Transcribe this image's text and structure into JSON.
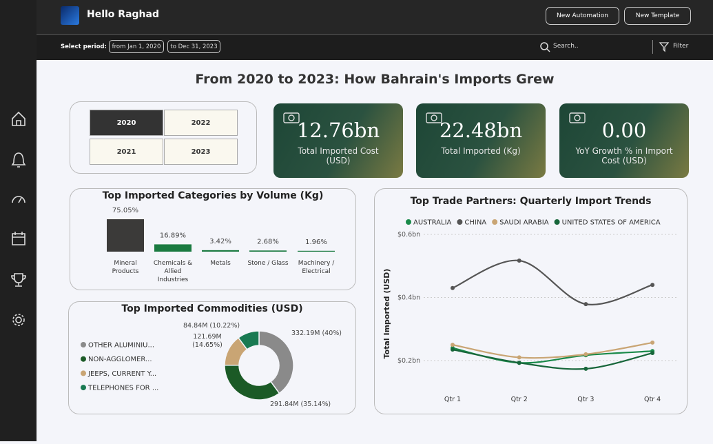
{
  "header": {
    "greeting": "Hello Raghad",
    "buttons": [
      "New Automation",
      "New Template"
    ]
  },
  "filters": {
    "label": "Select period:",
    "from": "from Jan 1, 2020",
    "to": "to Dec 31, 2023",
    "search": "Search..",
    "filter": "Filter"
  },
  "title": "From 2020 to 2023: How Bahrain's Imports Grew",
  "years": [
    "2020",
    "2022",
    "2021",
    "2023"
  ],
  "kpis": [
    {
      "value": "12.76bn",
      "label": "Total Imported Cost (USD)"
    },
    {
      "value": "22.48bn",
      "label": "Total Imported (Kg)"
    },
    {
      "value": "0.00",
      "label": "YoY Growth % in Import Cost (USD)"
    }
  ],
  "chart_data": [
    {
      "type": "bar",
      "title": "Top Imported Categories by Volume (Kg)",
      "categories": [
        "Mineral Products",
        "Chemicals & Allied Industries",
        "Metals",
        "Stone / Glass",
        "Machinery / Electrical"
      ],
      "values": [
        75.05,
        16.89,
        3.42,
        2.68,
        1.96
      ],
      "value_labels": [
        "75.05%",
        "16.89%",
        "3.42%",
        "2.68%",
        "1.96%"
      ],
      "colors": [
        "#3b3a39",
        "#1a7a40",
        "#1a7a40",
        "#1a7a40",
        "#1a7a40"
      ]
    },
    {
      "type": "pie",
      "title": "Top Imported Commodities (USD)",
      "categories": [
        "OTHER ALUMINIU...",
        "NON-AGGLOMER...",
        "JEEPS, CURRENT Y...",
        "TELEPHONES FOR ..."
      ],
      "values": [
        332.19,
        291.84,
        121.69,
        84.84
      ],
      "value_labels": [
        "332.19M (40%)",
        "291.84M (35.14%)",
        "121.69M (14.65%)",
        "84.84M (10.22%)"
      ],
      "colors": [
        "#8a8a8a",
        "#1b5a26",
        "#c9a574",
        "#197a52"
      ],
      "donut": true
    },
    {
      "type": "line",
      "title": "Top Trade Partners: Quarterly Import Trends",
      "y_label": "Total Imported (USD)",
      "categories": [
        "Qtr 1",
        "Qtr 2",
        "Qtr 3",
        "Qtr 4"
      ],
      "series": [
        {
          "name": "AUSTRALIA",
          "color": "#1a8a4a",
          "values": [
            0.24,
            0.193,
            0.217,
            0.23
          ]
        },
        {
          "name": "CHINA",
          "color": "#555555",
          "values": [
            0.43,
            0.517,
            0.379,
            0.44
          ]
        },
        {
          "name": "SAUDI ARABIA",
          "color": "#c9a574",
          "values": [
            0.25,
            0.21,
            0.22,
            0.257
          ]
        },
        {
          "name": "UNITED STATES OF AMERICA",
          "color": "#17663a",
          "values": [
            0.235,
            0.193,
            0.174,
            0.224
          ]
        }
      ],
      "ylim": [
        0.1,
        0.6
      ],
      "yticks": [
        {
          "value": 0.2,
          "label": "$0.2bn"
        },
        {
          "value": 0.4,
          "label": "$0.4bn"
        },
        {
          "value": 0.6,
          "label": "$0.6bn"
        }
      ],
      "grid": true
    }
  ]
}
